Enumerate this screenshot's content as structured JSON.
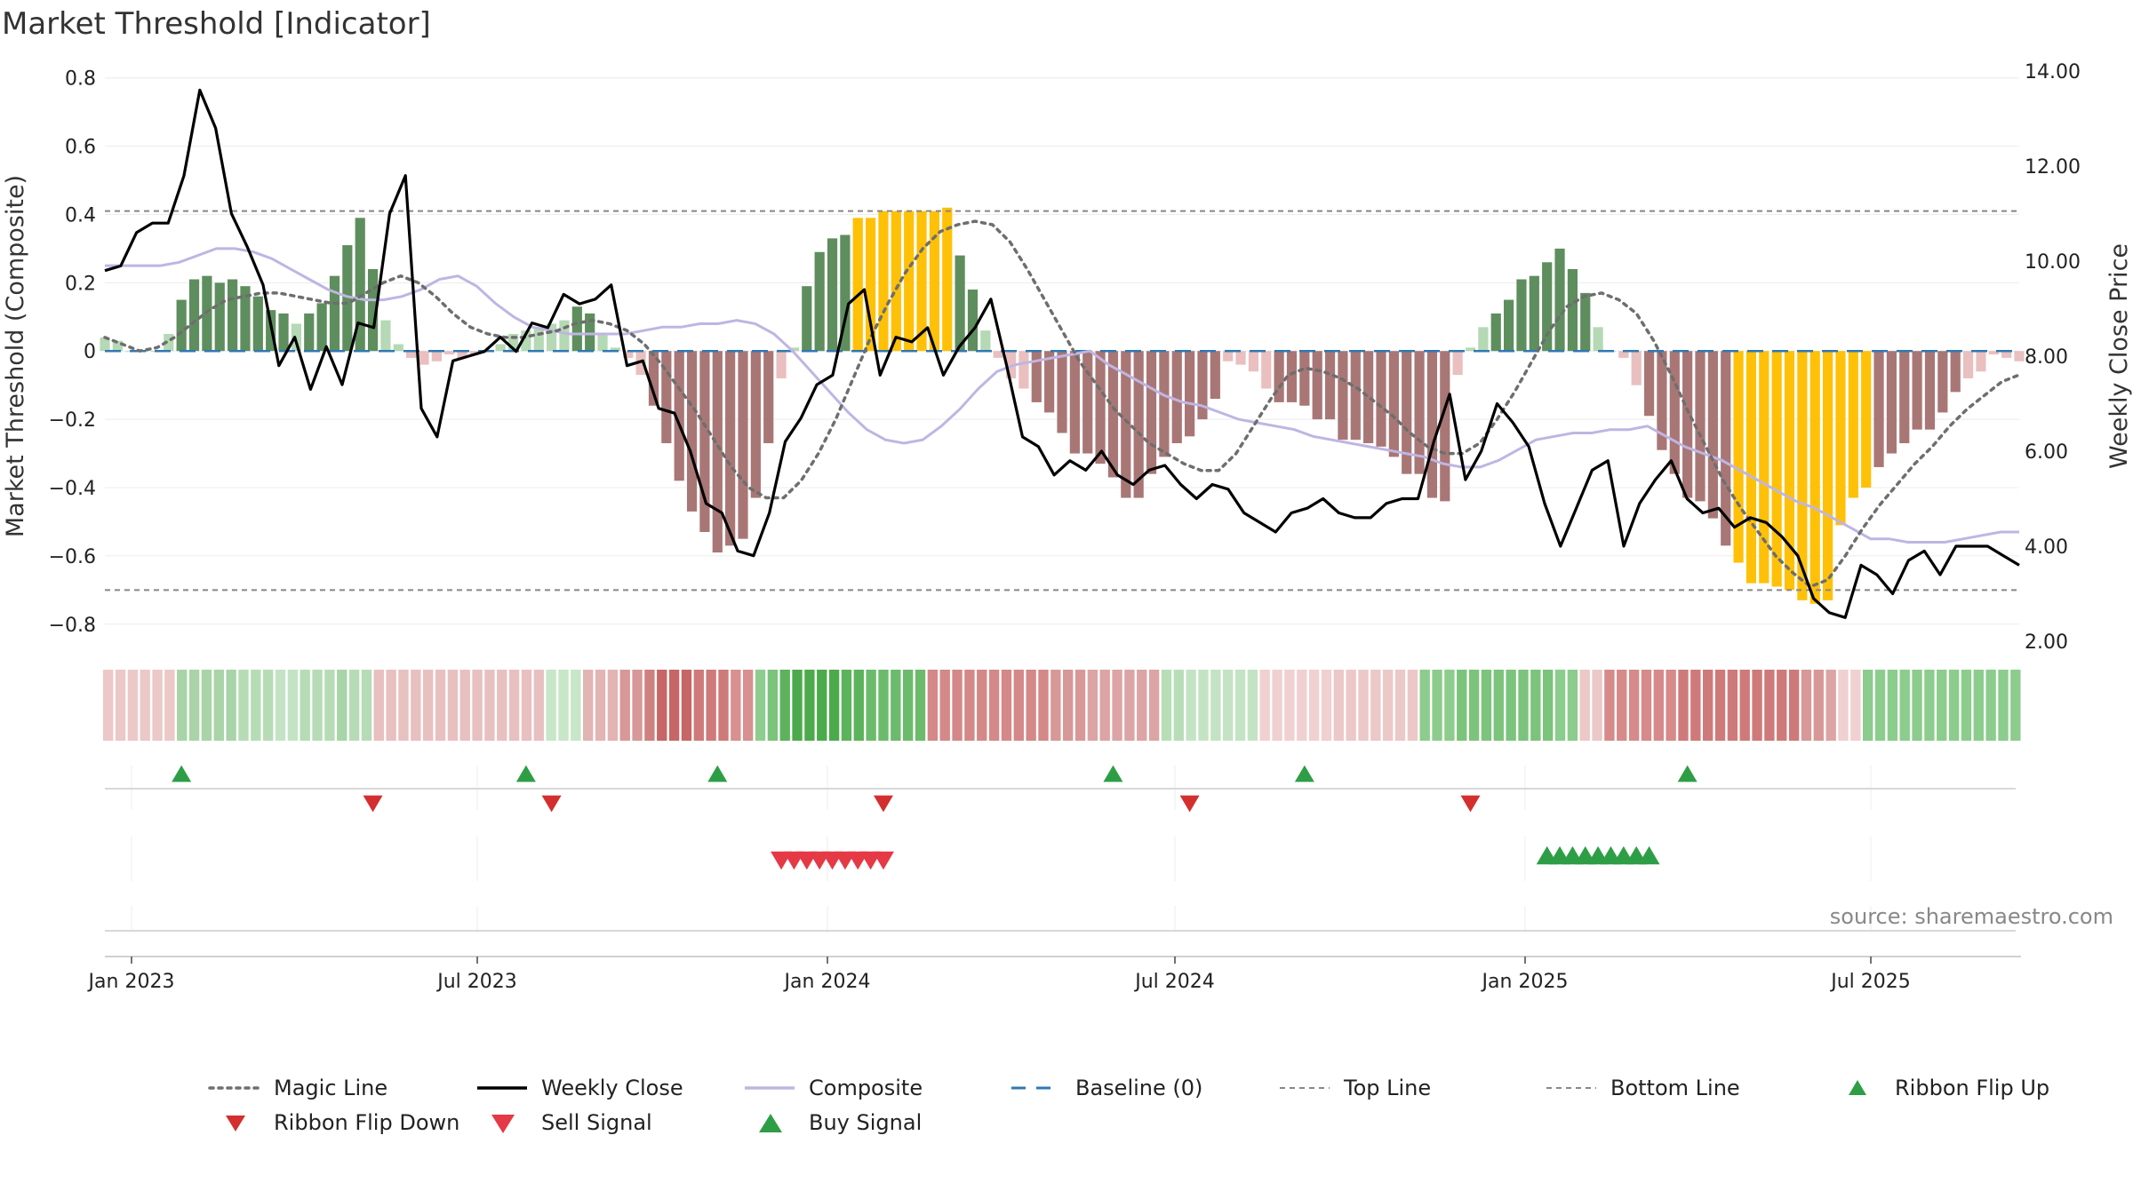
{
  "chart_data": {
    "type": "bar",
    "title": "Market Threshold [Indicator]",
    "ylabel_left": "Market Threshold (Composite)",
    "ylabel_right": "Weekly Close Price",
    "ylim_left": [
      -0.85,
      0.82
    ],
    "ylim_right": [
      2.0,
      14.0
    ],
    "yticks_left": [
      "0.8",
      "0.6",
      "0.4",
      "0.2",
      "0",
      "−0.2",
      "−0.4",
      "−0.6",
      "−0.8"
    ],
    "yticks_right": [
      "14.00",
      "12.00",
      "10.00",
      "8.00",
      "6.00",
      "4.00",
      "2.00"
    ],
    "xticks": [
      "Jan 2023",
      "Jul 2023",
      "Jan 2024",
      "Jul 2024",
      "Jan 2025",
      "Jul 2025"
    ],
    "top_line": 0.41,
    "bottom_line": -0.7,
    "source": "source: sharemaestro.com",
    "composite_bars": [
      0.04,
      0.03,
      0.0,
      0.0,
      0.0,
      0.05,
      0.15,
      0.21,
      0.22,
      0.2,
      0.21,
      0.19,
      0.16,
      0.12,
      0.11,
      0.08,
      0.11,
      0.14,
      0.22,
      0.31,
      0.39,
      0.24,
      0.09,
      0.02,
      -0.02,
      -0.04,
      -0.03,
      -0.01,
      -0.02,
      -0.01,
      0.0,
      0.02,
      0.05,
      0.06,
      0.07,
      0.08,
      0.09,
      0.13,
      0.11,
      0.05,
      0.01,
      -0.02,
      -0.07,
      -0.16,
      -0.27,
      -0.38,
      -0.47,
      -0.53,
      -0.59,
      -0.57,
      -0.55,
      -0.43,
      -0.27,
      -0.08,
      0.01,
      0.19,
      0.29,
      0.33,
      0.34,
      0.39,
      0.39,
      0.41,
      0.41,
      0.41,
      0.41,
      0.41,
      0.42,
      0.28,
      0.18,
      0.06,
      -0.02,
      -0.08,
      -0.11,
      -0.15,
      -0.18,
      -0.24,
      -0.3,
      -0.3,
      -0.33,
      -0.37,
      -0.43,
      -0.43,
      -0.36,
      -0.31,
      -0.27,
      -0.25,
      -0.2,
      -0.14,
      -0.03,
      -0.04,
      -0.06,
      -0.11,
      -0.15,
      -0.15,
      -0.16,
      -0.2,
      -0.2,
      -0.26,
      -0.26,
      -0.27,
      -0.28,
      -0.31,
      -0.36,
      -0.36,
      -0.43,
      -0.44,
      -0.07,
      0.01,
      0.07,
      0.11,
      0.15,
      0.21,
      0.22,
      0.26,
      0.3,
      0.24,
      0.17,
      0.07,
      0.0,
      -0.02,
      -0.1,
      -0.19,
      -0.29,
      -0.36,
      -0.43,
      -0.44,
      -0.49,
      -0.57,
      -0.62,
      -0.68,
      -0.68,
      -0.69,
      -0.7,
      -0.73,
      -0.74,
      -0.73,
      -0.51,
      -0.43,
      -0.4,
      -0.34,
      -0.3,
      -0.27,
      -0.23,
      -0.23,
      -0.18,
      -0.12,
      -0.08,
      -0.06,
      -0.01,
      -0.02,
      -0.03
    ],
    "weekly_close": [
      9.8,
      9.9,
      10.6,
      10.8,
      10.8,
      11.8,
      13.6,
      12.8,
      11.0,
      10.3,
      9.5,
      7.8,
      8.4,
      7.3,
      8.2,
      7.4,
      8.7,
      8.6,
      11.0,
      11.8,
      6.9,
      6.3,
      7.9,
      8.0,
      8.1,
      8.4,
      8.1,
      8.7,
      8.6,
      9.3,
      9.1,
      9.2,
      9.5,
      7.8,
      7.9,
      6.9,
      6.8,
      6.0,
      4.9,
      4.7,
      3.9,
      3.8,
      4.7,
      6.2,
      6.7,
      7.4,
      7.6,
      9.1,
      9.4,
      7.6,
      8.4,
      8.3,
      8.6,
      7.6,
      8.2,
      8.6,
      9.2,
      7.8,
      6.3,
      6.1,
      5.5,
      5.8,
      5.6,
      6.0,
      5.5,
      5.3,
      5.6,
      5.7,
      5.3,
      5.0,
      5.3,
      5.2,
      4.7,
      4.5,
      4.3,
      4.7,
      4.8,
      5.0,
      4.7,
      4.6,
      4.6,
      4.9,
      5.0,
      5.0,
      6.2,
      7.2,
      5.4,
      6.0,
      7.0,
      6.6,
      6.1,
      4.9,
      4.0,
      4.8,
      5.6,
      5.8,
      4.0,
      4.9,
      5.4,
      5.8,
      5.0,
      4.7,
      4.8,
      4.4,
      4.6,
      4.5,
      4.2,
      3.8,
      2.9,
      2.6,
      2.5,
      3.6,
      3.4,
      3.0,
      3.7,
      3.9,
      3.4,
      4.0,
      4.0,
      4.0,
      3.8,
      3.6
    ],
    "composite_line": [
      0.25,
      0.25,
      0.25,
      0.25,
      0.26,
      0.28,
      0.3,
      0.3,
      0.29,
      0.27,
      0.24,
      0.21,
      0.18,
      0.16,
      0.15,
      0.15,
      0.16,
      0.18,
      0.21,
      0.22,
      0.19,
      0.14,
      0.1,
      0.07,
      0.06,
      0.05,
      0.05,
      0.05,
      0.05,
      0.06,
      0.07,
      0.07,
      0.08,
      0.08,
      0.09,
      0.08,
      0.05,
      0.0,
      -0.06,
      -0.12,
      -0.18,
      -0.23,
      -0.26,
      -0.27,
      -0.26,
      -0.22,
      -0.17,
      -0.11,
      -0.06,
      -0.04,
      -0.03,
      -0.02,
      -0.01,
      0.0,
      -0.04,
      -0.07,
      -0.1,
      -0.13,
      -0.15,
      -0.16,
      -0.18,
      -0.2,
      -0.21,
      -0.22,
      -0.23,
      -0.25,
      -0.26,
      -0.27,
      -0.28,
      -0.29,
      -0.3,
      -0.31,
      -0.33,
      -0.34,
      -0.34,
      -0.32,
      -0.29,
      -0.26,
      -0.25,
      -0.24,
      -0.24,
      -0.23,
      -0.23,
      -0.22,
      -0.25,
      -0.28,
      -0.3,
      -0.32,
      -0.35,
      -0.38,
      -0.41,
      -0.44,
      -0.46,
      -0.49,
      -0.52,
      -0.55,
      -0.55,
      -0.56,
      -0.56,
      -0.56,
      -0.55,
      -0.54,
      -0.53,
      -0.53
    ],
    "magic_line": [
      0.04,
      0.02,
      0.0,
      0.01,
      0.04,
      0.08,
      0.12,
      0.15,
      0.16,
      0.17,
      0.17,
      0.16,
      0.15,
      0.14,
      0.14,
      0.17,
      0.2,
      0.22,
      0.2,
      0.16,
      0.11,
      0.07,
      0.05,
      0.04,
      0.04,
      0.05,
      0.06,
      0.08,
      0.09,
      0.08,
      0.06,
      0.02,
      -0.04,
      -0.11,
      -0.18,
      -0.26,
      -0.34,
      -0.4,
      -0.43,
      -0.43,
      -0.38,
      -0.3,
      -0.2,
      -0.08,
      0.04,
      0.14,
      0.23,
      0.3,
      0.35,
      0.37,
      0.38,
      0.37,
      0.32,
      0.24,
      0.15,
      0.06,
      -0.03,
      -0.1,
      -0.17,
      -0.22,
      -0.27,
      -0.3,
      -0.33,
      -0.35,
      -0.35,
      -0.3,
      -0.22,
      -0.14,
      -0.07,
      -0.05,
      -0.06,
      -0.08,
      -0.11,
      -0.15,
      -0.19,
      -0.24,
      -0.28,
      -0.3,
      -0.3,
      -0.27,
      -0.2,
      -0.12,
      -0.03,
      0.06,
      0.13,
      0.16,
      0.17,
      0.15,
      0.11,
      0.03,
      -0.07,
      -0.18,
      -0.28,
      -0.38,
      -0.46,
      -0.53,
      -0.6,
      -0.65,
      -0.69,
      -0.67,
      -0.6,
      -0.52,
      -0.45,
      -0.39,
      -0.33,
      -0.28,
      -0.22,
      -0.17,
      -0.13,
      -0.09,
      -0.07
    ],
    "ribbon_colors": [
      "#ecc8c8",
      "#ecc8c8",
      "#ecc8c8",
      "#ecc8c8",
      "#ecc8c8",
      "#ecc8c8",
      "#a8d4a8",
      "#a8d4a8",
      "#a8d4a8",
      "#a8d4a8",
      "#a8d4a8",
      "#b6dcb6",
      "#b6dcb6",
      "#b6dcb6",
      "#c4e3c4",
      "#c4e3c4",
      "#b6dcb6",
      "#b6dcb6",
      "#b6dcb6",
      "#a8d4a8",
      "#b6dcb6",
      "#b6dcb6",
      "#e8c0c0",
      "#e8c0c0",
      "#e8c0c0",
      "#e8c0c0",
      "#e8c0c0",
      "#e8c0c0",
      "#e8c0c0",
      "#e8c0c0",
      "#e8c0c0",
      "#e8c0c0",
      "#e8c0c0",
      "#e8c0c0",
      "#e8c0c0",
      "#e8c0c0",
      "#c8e6c8",
      "#c8e6c8",
      "#c8e6c8",
      "#e2b4b4",
      "#e2b4b4",
      "#e2b4b4",
      "#d89898",
      "#d89898",
      "#cf8080",
      "#c76666",
      "#c76666",
      "#c76666",
      "#cf7a7a",
      "#cf7a7a",
      "#cf7a7a",
      "#d89090",
      "#d89090",
      "#8fcc8f",
      "#7cc37c",
      "#5cb35c",
      "#4caa4c",
      "#4caa4c",
      "#4caa4c",
      "#4caa4c",
      "#5cb35c",
      "#5cb35c",
      "#6cbb6c",
      "#6cbb6c",
      "#6cbb6c",
      "#6cbb6c",
      "#6cbb6c",
      "#d48888",
      "#d48888",
      "#d48888",
      "#d48888",
      "#d48888",
      "#d48888",
      "#d48888",
      "#d48888",
      "#d48888",
      "#d48888",
      "#d89898",
      "#d89898",
      "#d89898",
      "#dca4a4",
      "#dca4a4",
      "#dca4a4",
      "#dca4a4",
      "#dca4a4",
      "#dca4a4",
      "#b8deb8",
      "#b8deb8",
      "#c4e3c4",
      "#c4e3c4",
      "#c4e3c4",
      "#c4e3c4",
      "#c4e3c4",
      "#c4e3c4",
      "#f0d0d0",
      "#f0d0d0",
      "#f0d0d0",
      "#f0d0d0",
      "#f0d0d0",
      "#f0d0d0",
      "#ecc8c8",
      "#ecc8c8",
      "#ecc8c8",
      "#ecc8c8",
      "#ecc8c8",
      "#ecc8c8",
      "#ecc8c8",
      "#8ccc8c",
      "#8ccc8c",
      "#8ccc8c",
      "#7cc37c",
      "#7cc37c",
      "#7cc37c",
      "#7cc37c",
      "#7cc37c",
      "#7cc37c",
      "#7cc37c",
      "#7cc37c",
      "#8ccc8c",
      "#8ccc8c",
      "#ecc8c8",
      "#ecc8c8",
      "#d68a8a",
      "#d68a8a",
      "#d68a8a",
      "#d68a8a",
      "#d68a8a",
      "#d68a8a",
      "#cf7a7a",
      "#cf7a7a",
      "#cf7a7a",
      "#cf7a7a",
      "#cf7a7a",
      "#cf7a7a",
      "#cf7a7a",
      "#cf7a7a",
      "#cf7a7a",
      "#cf7a7a",
      "#d89898",
      "#d89898",
      "#dca4a4",
      "#f0d0d0",
      "#f0d0d0",
      "#8ccc8c",
      "#8ccc8c",
      "#8ccc8c",
      "#8ccc8c",
      "#8ccc8c",
      "#8ccc8c",
      "#8ccc8c",
      "#8ccc8c",
      "#8ccc8c",
      "#8ccc8c",
      "#8ccc8c",
      "#8ccc8c",
      "#8ccc8c"
    ],
    "ribbon_flip_up_weeks": [
      6,
      33,
      48,
      79,
      94,
      124
    ],
    "ribbon_flip_down_weeks": [
      21,
      35,
      61,
      85,
      107
    ],
    "sell_signal_weeks": [
      53,
      54,
      55,
      56,
      57,
      58,
      59,
      60,
      61
    ],
    "buy_signal_weeks": [
      113,
      114,
      115,
      116,
      117,
      118,
      119,
      120,
      121
    ],
    "legend": [
      {
        "label": "Magic Line"
      },
      {
        "label": "Weekly Close"
      },
      {
        "label": "Composite"
      },
      {
        "label": "Baseline (0)"
      },
      {
        "label": "Top Line"
      },
      {
        "label": "Bottom Line"
      },
      {
        "label": "Ribbon Flip Up"
      },
      {
        "label": "Ribbon Flip Down"
      },
      {
        "label": "Sell Signal"
      },
      {
        "label": "Buy Signal"
      }
    ],
    "colors": {
      "bar_pos_dark": "#5e8e5e",
      "bar_pos_light": "#b4d9b4",
      "bar_neg_dark": "#a97676",
      "bar_neg_light": "#eabfbf",
      "bar_extreme": "#ffc107",
      "weekly_close": "#000000",
      "composite": "#bfb5e3",
      "magic": "#6e6e6e",
      "baseline": "#2f78b4",
      "threshold": "#888888",
      "flip_up": "#2e9e46",
      "flip_down": "#d32f2f",
      "sell": "#e53945",
      "buy": "#2e9e46",
      "source": "#888888"
    }
  }
}
